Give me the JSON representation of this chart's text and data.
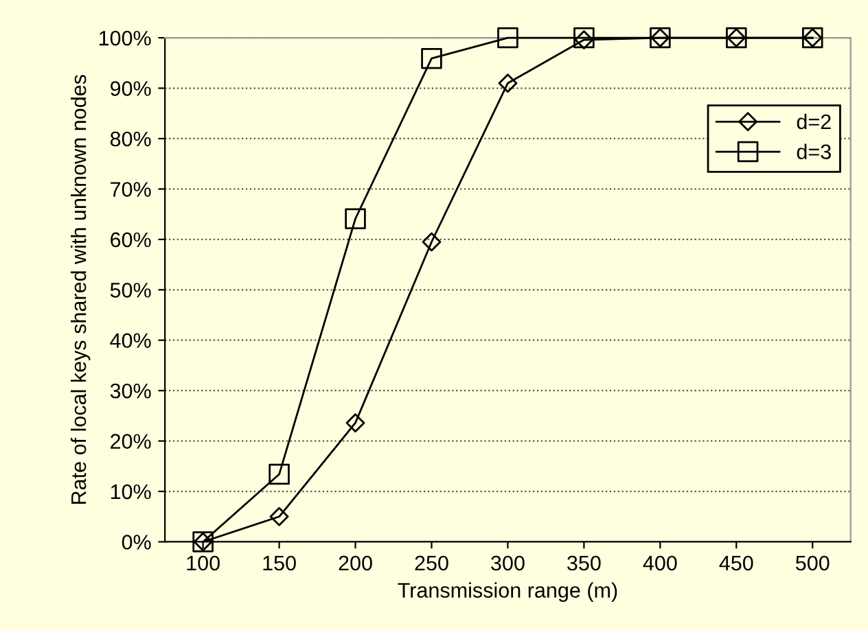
{
  "chart_data": {
    "type": "line",
    "xlabel": "Transmission range (m)",
    "ylabel": "Rate of local keys shared with unknown nodes",
    "categories": [
      "100",
      "150",
      "200",
      "250",
      "300",
      "350",
      "400",
      "450",
      "500"
    ],
    "series": [
      {
        "name": "d=2",
        "color": "#000000",
        "marker": "diamond",
        "values": [
          0,
          5,
          23.6,
          59.5,
          91,
          99.6,
          100,
          100,
          100
        ]
      },
      {
        "name": "d=3",
        "color": "#000000",
        "marker": "square",
        "values": [
          0,
          13.4,
          64.1,
          95.9,
          100,
          100,
          100,
          100,
          100
        ]
      }
    ],
    "ylim": [
      0,
      100
    ],
    "yticks": [
      {
        "value": 0,
        "label": "0%"
      },
      {
        "value": 10,
        "label": "10%"
      },
      {
        "value": 20,
        "label": "20%"
      },
      {
        "value": 30,
        "label": "30%"
      },
      {
        "value": 40,
        "label": "40%"
      },
      {
        "value": 50,
        "label": "50%"
      },
      {
        "value": 60,
        "label": "60%"
      },
      {
        "value": 70,
        "label": "70%"
      },
      {
        "value": 80,
        "label": "80%"
      },
      {
        "value": 90,
        "label": "90%"
      },
      {
        "value": 100,
        "label": "100%"
      }
    ],
    "grid": "y",
    "legend": "right",
    "line_style": "solid"
  }
}
